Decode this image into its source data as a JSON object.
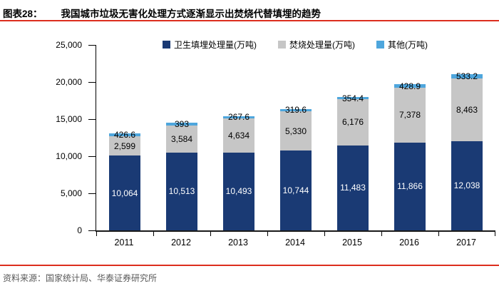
{
  "header": {
    "label": "图表28：",
    "title": "我国城市垃圾无害化处理方式逐渐显示出焚烧代替填埋的趋势"
  },
  "footer": {
    "source": "资料来源：国家统计局、华泰证券研究所"
  },
  "colors": {
    "rule": "#dc2e1e",
    "axis": "#000000",
    "landfill": "#1a3a74",
    "incineration": "#c6c6c6",
    "other": "#4ea6dd",
    "source_text": "#595959"
  },
  "chart_data": {
    "type": "bar",
    "stacked": true,
    "title": "我国城市垃圾无害化处理方式逐渐显示出焚烧代替填埋的趋势",
    "xlabel": "",
    "ylabel": "",
    "ylim": [
      0,
      25000
    ],
    "ytick_step": 5000,
    "yticks": [
      "25,000",
      "20,000",
      "15,000",
      "10,000",
      "5,000",
      "0"
    ],
    "grid": false,
    "legend_position": "top",
    "categories": [
      "2011",
      "2012",
      "2013",
      "2014",
      "2015",
      "2016",
      "2017"
    ],
    "series": [
      {
        "name": "卫生填埋处理量(万吨)",
        "color": "#1a3a74",
        "label_color": "#ffffff",
        "values": [
          10064,
          10513,
          10493,
          10744,
          11483,
          11866,
          12038
        ],
        "labels": [
          "10,064",
          "10,513",
          "10,493",
          "10,744",
          "11,483",
          "11,866",
          "12,038"
        ]
      },
      {
        "name": "焚烧处理量(万吨)",
        "color": "#c6c6c6",
        "label_color": "#000000",
        "values": [
          2599,
          3584,
          4634,
          5330,
          6176,
          7378,
          8463
        ],
        "labels": [
          "2,599",
          "3,584",
          "4,634",
          "5,330",
          "6,176",
          "7,378",
          "8,463"
        ]
      },
      {
        "name": "其他(万吨)",
        "color": "#4ea6dd",
        "label_color": "#000000",
        "values": [
          426.6,
          393,
          267.6,
          319.6,
          354.4,
          428.9,
          533.2
        ],
        "labels": [
          "426.6",
          "393",
          "267.6",
          "319.6",
          "354.4",
          "428.9",
          "533.2"
        ]
      }
    ]
  }
}
